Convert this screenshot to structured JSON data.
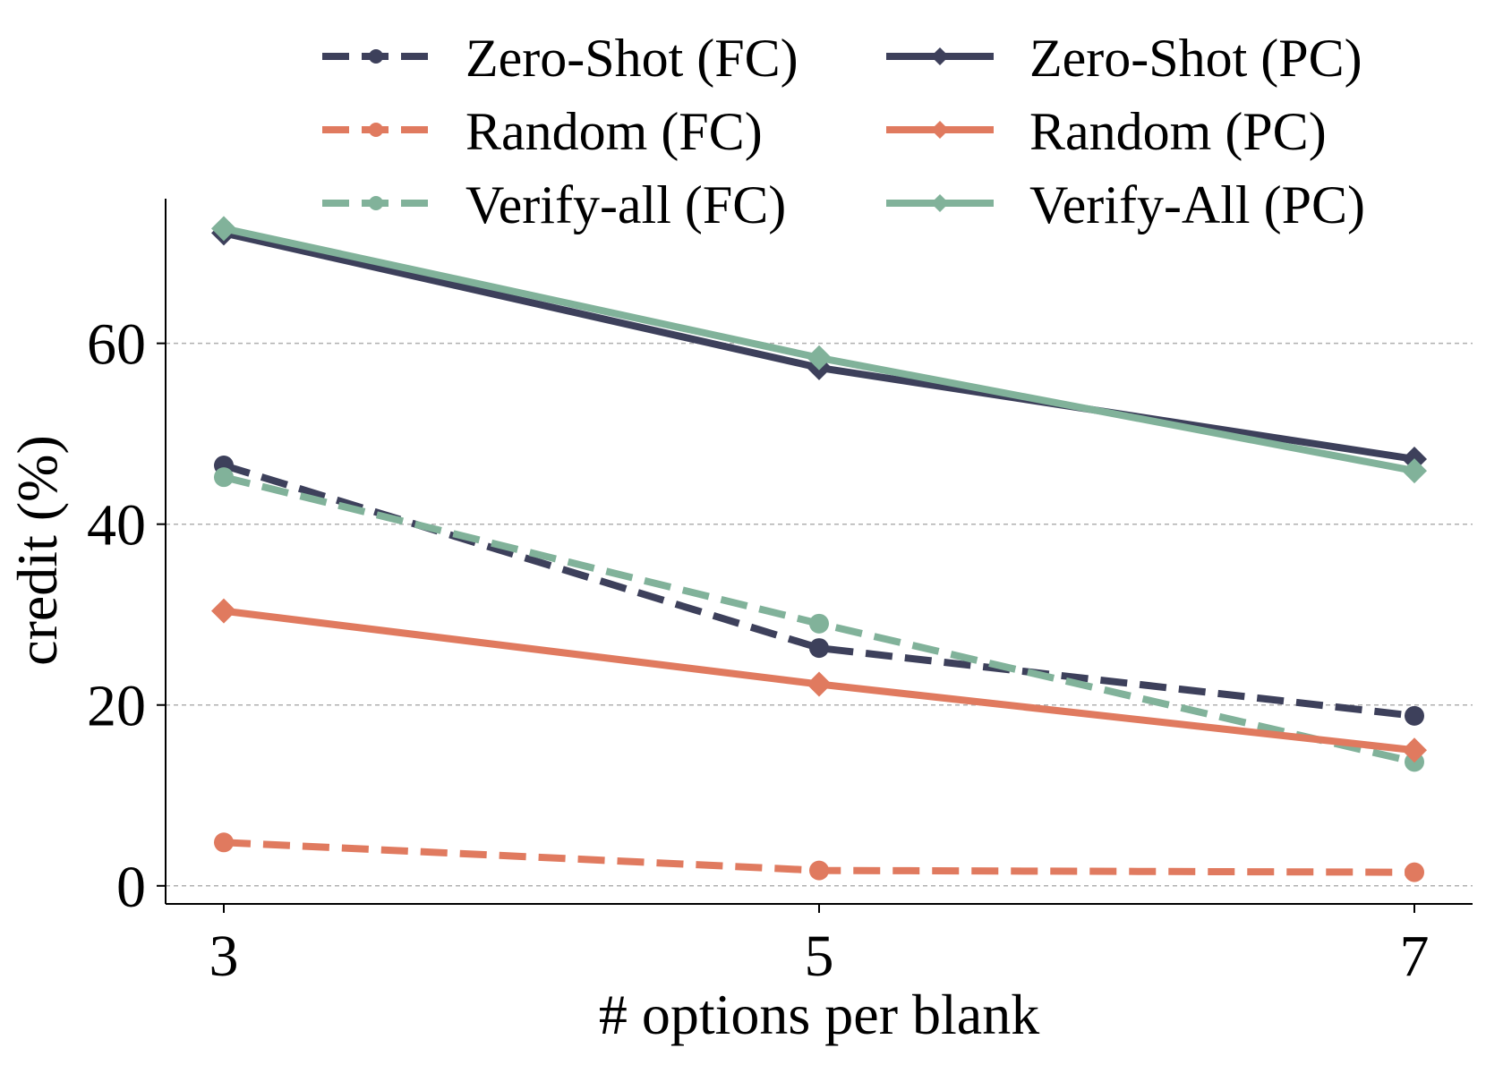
{
  "chart_data": {
    "type": "line",
    "title": "",
    "xlabel": "# options per blank",
    "ylabel": "credit (%)",
    "x": [
      3,
      5,
      7
    ],
    "x_ticks": [
      "3",
      "5",
      "7"
    ],
    "y_ticks": [
      "0",
      "20",
      "40",
      "60"
    ],
    "ylim": [
      -2,
      76
    ],
    "grid": "horizontal dashed",
    "legend_position": "top, outside plot area, 2 columns",
    "series": [
      {
        "name": "Zero-Shot (FC)",
        "values": [
          46.5,
          26.3,
          18.8
        ],
        "color": "#3d405b",
        "line_style": "dashed",
        "marker": "circle"
      },
      {
        "name": "Random (FC)",
        "values": [
          4.8,
          1.7,
          1.5
        ],
        "color": "#e07a5f",
        "line_style": "dashed",
        "marker": "circle"
      },
      {
        "name": "Verify-all (FC)",
        "values": [
          45.2,
          29.0,
          13.7
        ],
        "color": "#81b29a",
        "line_style": "dashed",
        "marker": "circle"
      },
      {
        "name": "Zero-Shot (PC)",
        "values": [
          72.2,
          57.3,
          47.2
        ],
        "color": "#3d405b",
        "line_style": "solid",
        "marker": "diamond"
      },
      {
        "name": "Random (PC)",
        "values": [
          30.4,
          22.3,
          15.0
        ],
        "color": "#e07a5f",
        "line_style": "solid",
        "marker": "diamond"
      },
      {
        "name": "Verify-All (PC)",
        "values": [
          72.7,
          58.4,
          45.9
        ],
        "color": "#81b29a",
        "line_style": "solid",
        "marker": "diamond"
      }
    ]
  }
}
